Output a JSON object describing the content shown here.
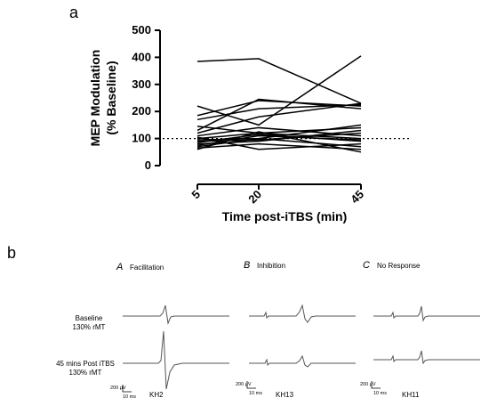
{
  "panel_a_letter": "a",
  "panel_b_letter": "b",
  "chart_data": {
    "type": "line",
    "xlabel": "Time post-iTBS (min)",
    "ylabel_line1": "MEP Modulation",
    "ylabel_line2": "(% Baseline)",
    "x": [
      5,
      20,
      45
    ],
    "ylim": [
      0,
      500
    ],
    "y_ticks": [
      0,
      100,
      200,
      300,
      400,
      500
    ],
    "reference_line": 100,
    "series": [
      {
        "values": [
          385,
          395,
          230
        ]
      },
      {
        "values": [
          220,
          150,
          405
        ]
      },
      {
        "values": [
          185,
          240,
          220
        ]
      },
      {
        "values": [
          170,
          210,
          225
        ]
      },
      {
        "values": [
          130,
          245,
          210
        ]
      },
      {
        "values": [
          120,
          180,
          230
        ]
      },
      {
        "values": [
          145,
          120,
          140
        ]
      },
      {
        "values": [
          110,
          140,
          110
        ]
      },
      {
        "values": [
          100,
          120,
          100
        ]
      },
      {
        "values": [
          95,
          100,
          150
        ]
      },
      {
        "values": [
          90,
          95,
          120
        ]
      },
      {
        "values": [
          85,
          115,
          90
        ]
      },
      {
        "values": [
          80,
          90,
          130
        ]
      },
      {
        "values": [
          75,
          110,
          95
        ]
      },
      {
        "values": [
          70,
          100,
          70
        ]
      },
      {
        "values": [
          65,
          80,
          60
        ]
      },
      {
        "values": [
          105,
          60,
          80
        ]
      },
      {
        "values": [
          60,
          125,
          50
        ]
      }
    ]
  },
  "panel_b": {
    "conditions": [
      {
        "letter": "A",
        "label": "Facilitation",
        "subject": "KH2"
      },
      {
        "letter": "B",
        "label": "Inhibition",
        "subject": "KH13"
      },
      {
        "letter": "C",
        "label": "No Response",
        "subject": "KH11"
      }
    ],
    "row_labels": [
      {
        "line1": "Baseline",
        "line2": "130% rMT"
      },
      {
        "line1": "45 mins Post iTBS",
        "line2": "130% rMT"
      }
    ],
    "scale_amplitude": "200 μV",
    "scale_time": "10 ms"
  }
}
